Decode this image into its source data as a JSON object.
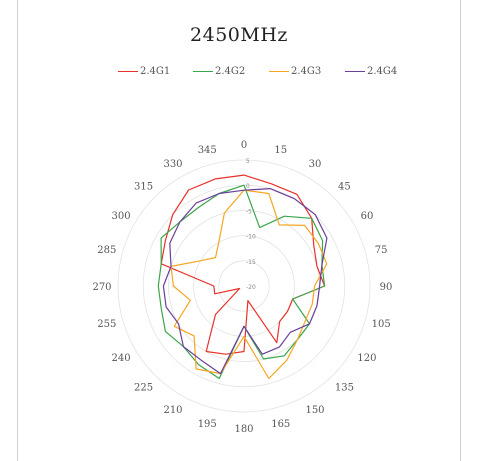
{
  "chart_data": {
    "type": "radar",
    "title": "2450MHz",
    "angles": [
      "0",
      "15",
      "30",
      "45",
      "60",
      "75",
      "90",
      "105",
      "120",
      "135",
      "150",
      "165",
      "180",
      "195",
      "210",
      "225",
      "240",
      "255",
      "270",
      "285",
      "300",
      "315",
      "330",
      "345"
    ],
    "rlim": [
      -20,
      5
    ],
    "rings": [
      "5",
      "0",
      "-5",
      "-10",
      "-15",
      "-20"
    ],
    "grid": true,
    "legend_position": "top",
    "series": [
      {
        "name": "2.4G1",
        "color": "#e8312a",
        "values": [
          2,
          1,
          1,
          -1,
          -4,
          -5,
          -4,
          -10,
          -10,
          -10,
          -7,
          -17,
          -7,
          -6,
          -5,
          -12,
          -19,
          -14,
          -14,
          -3,
          -2,
          0,
          2,
          2
        ]
      },
      {
        "name": "2.4G2",
        "color": "#3aa64b",
        "values": [
          0,
          -8,
          -4,
          -1,
          -2,
          -4,
          -4,
          -10,
          -5,
          -5,
          -4,
          -5,
          -12,
          -1,
          -2,
          -3,
          -2,
          -3,
          -3,
          -3,
          -1,
          -2,
          -2,
          -1
        ]
      },
      {
        "name": "2.4G3",
        "color": "#f5a623",
        "values": [
          -1,
          -1,
          -6,
          -3,
          -3,
          -3,
          -6,
          -6,
          -6,
          -5,
          -3,
          -1,
          -10,
          -2,
          -1,
          -6,
          -4,
          -9,
          -6,
          -5,
          -10,
          -12,
          -10,
          -5
        ]
      },
      {
        "name": "2.4G4",
        "color": "#6a3f9a",
        "values": [
          -1,
          0,
          0,
          0,
          -1,
          -4,
          -5,
          -5,
          -5,
          -7,
          -6,
          -6,
          -12,
          -2,
          -3,
          -3,
          -5,
          -4,
          -4,
          -5,
          -3,
          -2,
          -1,
          -1
        ]
      }
    ]
  }
}
